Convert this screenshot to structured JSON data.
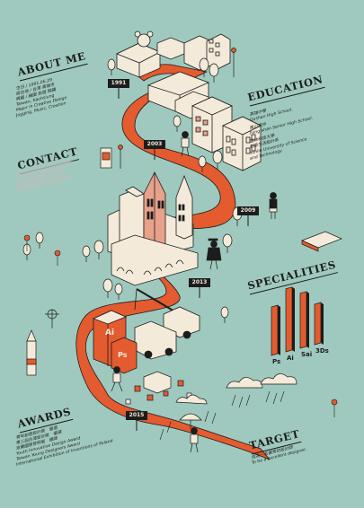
{
  "about": {
    "title": "ABOUT ME",
    "lines": [
      "生日 / 1991.06.29",
      "居住地 / 台灣 高雄市",
      "興趣 / 繪圖 旅遊 閱讀",
      "Taiwan, Kaohsiung",
      "Major in Creative Design",
      "Jogging, Music, Creation"
    ]
  },
  "contact": {
    "title": "CONTACT"
  },
  "education": {
    "title": "EDUCATION",
    "entries": [
      [
        "高雄中學",
        "Gushan High School."
      ],
      [
        "鳳山高中",
        "Fong-shan Senior High School."
      ],
      [
        "雲林科技大學",
        "創意生活設計系",
        "Yunlin University of Science",
        "and Technology"
      ]
    ]
  },
  "specialities": {
    "title": "SPECIALITIES"
  },
  "awards": {
    "title": "AWARDS",
    "lines": [
      "青年創意設計獎　優選",
      "第三屆台灣設計獎　優選",
      "波蘭國際發明展　銀牌",
      "Youth Innovative Design Award",
      "Taiwan Young Designers Award",
      "International Exhibition of Inventions of Poland"
    ]
  },
  "target": {
    "title": "TARGET",
    "lines": [
      "成為一名優秀的設計師",
      "To be a excellent designer."
    ]
  },
  "timeline": [
    "1991",
    "2003",
    "2009",
    "2013",
    "2015"
  ],
  "building_labels": {
    "ai": "Ai",
    "ps": "Ps"
  },
  "chart_data": {
    "type": "bar",
    "categories": [
      "Ps",
      "Ai",
      "Sai",
      "3Ds"
    ],
    "values": [
      60,
      78,
      68,
      50
    ],
    "ylim": [
      0,
      100
    ],
    "colors": {
      "bar": "#e35b2f",
      "shade": "#1c1c1c"
    }
  },
  "colors": {
    "background": "#9fc9be",
    "road": "#e35b2f",
    "ink": "#1c1c1c",
    "paper": "#f3ead9"
  }
}
